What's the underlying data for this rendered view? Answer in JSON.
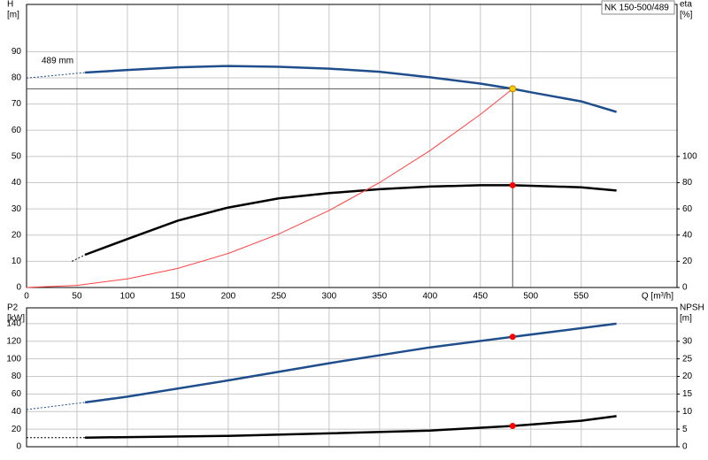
{
  "chart_data": [
    {
      "type": "line",
      "title": "NK 150-500/489",
      "ylabel": "H",
      "yunit": "[m]",
      "y2label": "eta",
      "y2unit": "[%]",
      "xlabel": "Q [m³/h]",
      "xlim": [
        0,
        645
      ],
      "xticks": [
        0,
        50,
        100,
        150,
        200,
        250,
        300,
        350,
        400,
        450,
        500,
        550
      ],
      "show_xtick_labels": true,
      "ylim": [
        0,
        108
      ],
      "yticks": [
        0,
        10,
        20,
        30,
        40,
        50,
        60,
        70,
        80,
        90
      ],
      "y2lim": [
        0,
        216
      ],
      "y2ticks": [
        0,
        20,
        40,
        60,
        80,
        100
      ],
      "grid": true,
      "series": [
        {
          "color": "#1f4e8c",
          "dash": true,
          "x": [
            0,
            58
          ],
          "values": [
            79.9,
            82
          ]
        },
        {
          "name": "489 mm",
          "color": "#1f4e8c",
          "x": [
            58,
            100,
            150,
            200,
            250,
            300,
            350,
            400,
            450,
            482,
            500,
            550,
            585
          ],
          "values": [
            82,
            83,
            84,
            84.5,
            84.2,
            83.5,
            82.3,
            80.2,
            77.8,
            75.8,
            74.5,
            71,
            67
          ]
        },
        {
          "color": "#000000",
          "dash": true,
          "axis": "y2",
          "x": [
            45,
            58
          ],
          "values": [
            20,
            25
          ]
        },
        {
          "color": "#000000",
          "axis": "y2",
          "x": [
            58,
            100,
            150,
            200,
            250,
            300,
            350,
            400,
            450,
            482,
            550,
            585
          ],
          "values": [
            25,
            37,
            51,
            61,
            68,
            72,
            75,
            77,
            78,
            78,
            76.5,
            74
          ]
        },
        {
          "color": "#ff4040",
          "thin": true,
          "x": [
            0,
            50,
            100,
            150,
            200,
            250,
            300,
            350,
            400,
            450,
            482
          ],
          "values": [
            0,
            0.8,
            3.3,
            7.3,
            13,
            20.4,
            29.4,
            40,
            52.2,
            66,
            75.8
          ]
        }
      ],
      "guides": {
        "x": 482,
        "y": 75.8
      },
      "markers": [
        {
          "x": 482,
          "y": 75.8,
          "color": "#ffcc00"
        },
        {
          "x": 482,
          "y": 78,
          "color": "#ff0000",
          "axis": "y2"
        }
      ]
    },
    {
      "type": "line",
      "ylabel": "P2",
      "yunit": "[kW]",
      "y2label": "NPSH",
      "y2unit": "[m]",
      "xlim": [
        0,
        645
      ],
      "xticks": [
        0,
        50,
        100,
        150,
        200,
        250,
        300,
        350,
        400,
        450,
        500,
        550
      ],
      "show_xtick_labels": false,
      "ylim": [
        0,
        158
      ],
      "yticks": [
        0,
        20,
        40,
        60,
        80,
        100,
        120,
        140
      ],
      "y2lim": [
        0,
        39.5
      ],
      "y2ticks": [
        0,
        5,
        10,
        15,
        20,
        25,
        30
      ],
      "grid": true,
      "series": [
        {
          "color": "#1f4e8c",
          "dash": true,
          "x": [
            0,
            58
          ],
          "values": [
            42.3,
            50.4
          ]
        },
        {
          "color": "#1f4e8c",
          "x": [
            58,
            100,
            200,
            300,
            400,
            482,
            585
          ],
          "values": [
            50.4,
            57,
            75.5,
            95,
            113,
            125,
            140
          ]
        },
        {
          "color": "#000000",
          "dash": true,
          "axis": "y2",
          "x": [
            0,
            58
          ],
          "values": [
            2.6,
            2.6
          ]
        },
        {
          "color": "#000000",
          "axis": "y2",
          "x": [
            58,
            200,
            300,
            400,
            482,
            550,
            585
          ],
          "values": [
            2.6,
            3.1,
            3.8,
            4.6,
            5.9,
            7.4,
            8.7
          ]
        }
      ],
      "markers": [
        {
          "x": 482,
          "y": 125,
          "color": "#ff0000"
        },
        {
          "x": 482,
          "y": 5.9,
          "color": "#ff0000",
          "axis": "y2"
        }
      ]
    }
  ]
}
